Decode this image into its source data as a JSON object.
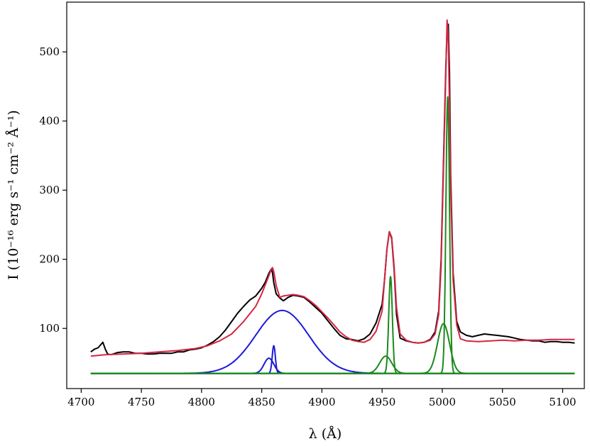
{
  "chart_data": {
    "type": "line",
    "title": "",
    "xlabel": "λ (Å)",
    "ylabel": "I (10⁻¹⁶ erg s⁻¹ cm⁻² Å⁻¹)",
    "xlim": [
      4688,
      5118
    ],
    "ylim": [
      13,
      572
    ],
    "xticks": [
      4700,
      4750,
      4800,
      4850,
      4900,
      4950,
      5000,
      5050,
      5100
    ],
    "yticks": [
      100,
      200,
      300,
      400,
      500
    ],
    "grid": false,
    "legend": "none",
    "colors": {
      "observed": "#000000",
      "model": "#d62645",
      "hbeta_components": "#1a1adb",
      "oiii_components": "#1a8a1a"
    },
    "continuum": 35,
    "series": [
      {
        "key": "observed",
        "x": [
          4708,
          4711,
          4714,
          4716,
          4718,
          4720,
          4722,
          4725,
          4730,
          4735,
          4740,
          4745,
          4750,
          4755,
          4760,
          4765,
          4770,
          4775,
          4780,
          4785,
          4790,
          4795,
          4800,
          4805,
          4810,
          4815,
          4820,
          4825,
          4830,
          4835,
          4840,
          4845,
          4850,
          4853,
          4856,
          4858,
          4859,
          4860,
          4862,
          4865,
          4868,
          4872,
          4876,
          4880,
          4885,
          4890,
          4895,
          4900,
          4905,
          4910,
          4915,
          4920,
          4925,
          4930,
          4935,
          4940,
          4945,
          4950,
          4952,
          4954,
          4956,
          4958,
          4960,
          4962,
          4965,
          4970,
          4975,
          4980,
          4985,
          4990,
          4994,
          4997,
          4999,
          5001,
          5003,
          5004,
          5005,
          5006,
          5007,
          5009,
          5012,
          5015,
          5020,
          5025,
          5030,
          5035,
          5040,
          5045,
          5050,
          5055,
          5060,
          5065,
          5070,
          5075,
          5080,
          5085,
          5090,
          5095,
          5100,
          5105,
          5110
        ],
        "y": [
          66,
          70,
          72,
          76,
          80,
          70,
          63,
          62,
          65,
          66,
          66,
          64,
          64,
          63,
          63,
          64,
          64,
          64,
          66,
          66,
          69,
          70,
          72,
          76,
          81,
          88,
          98,
          110,
          122,
          132,
          141,
          147,
          158,
          167,
          180,
          186,
          180,
          166,
          150,
          144,
          140,
          145,
          148,
          147,
          145,
          138,
          130,
          122,
          111,
          100,
          90,
          85,
          84,
          82,
          85,
          92,
          108,
          135,
          170,
          215,
          240,
          230,
          185,
          120,
          86,
          82,
          80,
          79,
          80,
          84,
          95,
          125,
          200,
          340,
          480,
          530,
          540,
          470,
          320,
          180,
          110,
          95,
          90,
          88,
          90,
          92,
          91,
          90,
          89,
          88,
          86,
          84,
          83,
          82,
          82,
          80,
          81,
          81,
          80,
          80,
          79
        ]
      },
      {
        "key": "model",
        "x": [
          4708,
          4720,
          4735,
          4750,
          4765,
          4780,
          4795,
          4805,
          4815,
          4825,
          4835,
          4845,
          4850,
          4855,
          4858,
          4859,
          4860,
          4862,
          4865,
          4868,
          4872,
          4876,
          4880,
          4885,
          4890,
          4895,
          4900,
          4905,
          4910,
          4915,
          4920,
          4925,
          4930,
          4935,
          4940,
          4945,
          4950,
          4952,
          4954,
          4956,
          4958,
          4960,
          4962,
          4965,
          4970,
          4975,
          4980,
          4985,
          4990,
          4994,
          4997,
          4999,
          5001,
          5003,
          5004,
          5005,
          5006,
          5007,
          5009,
          5012,
          5015,
          5020,
          5030,
          5040,
          5050,
          5060,
          5070,
          5080,
          5090,
          5100,
          5110
        ],
        "y": [
          60,
          62,
          63,
          64,
          66,
          68,
          71,
          75,
          82,
          92,
          110,
          132,
          150,
          172,
          186,
          188,
          182,
          162,
          145,
          147,
          148,
          149,
          148,
          146,
          140,
          133,
          124,
          115,
          105,
          95,
          88,
          83,
          81,
          80,
          84,
          96,
          125,
          170,
          215,
          240,
          232,
          190,
          130,
          92,
          83,
          80,
          79,
          80,
          83,
          92,
          120,
          190,
          330,
          470,
          546,
          520,
          420,
          300,
          170,
          105,
          85,
          82,
          81,
          82,
          83,
          82,
          83,
          83,
          84,
          84,
          84
        ]
      },
      {
        "key": "hbeta_broad",
        "type": "gaussian",
        "center": 4867,
        "sigma": 22,
        "amplitude": 91
      },
      {
        "key": "hbeta_narrow_a",
        "type": "gaussian",
        "center": 4856,
        "sigma": 4,
        "amplitude": 22
      },
      {
        "key": "hbeta_narrow_b",
        "type": "gaussian",
        "center": 4860,
        "sigma": 1.3,
        "amplitude": 40
      },
      {
        "key": "oiii_4959_broad",
        "type": "gaussian",
        "center": 4953,
        "sigma": 5,
        "amplitude": 25
      },
      {
        "key": "oiii_4959_narrow",
        "type": "gaussian",
        "center": 4957,
        "sigma": 1.5,
        "amplitude": 140
      },
      {
        "key": "oiii_5007_broad",
        "type": "gaussian",
        "center": 5001,
        "sigma": 5,
        "amplitude": 72
      },
      {
        "key": "oiii_5007_narrow",
        "type": "gaussian",
        "center": 5004.5,
        "sigma": 1.5,
        "amplitude": 400
      }
    ]
  }
}
